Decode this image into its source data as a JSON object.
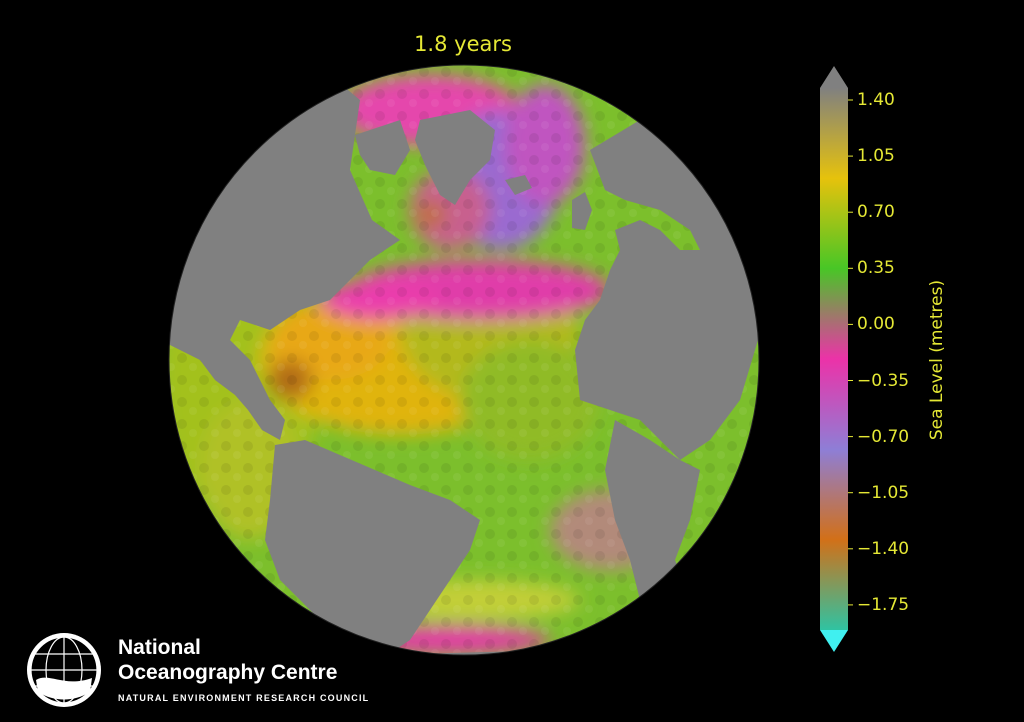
{
  "title": "1.8 years",
  "colorbar": {
    "label": "Sea Level (metres)",
    "ticks": [
      "1.40",
      "1.05",
      "0.70",
      "0.35",
      "0.00",
      "−0.35",
      "−0.70",
      "−1.05",
      "−1.40",
      "−1.75"
    ],
    "over_color": "#808080",
    "under_color": "#40f0f0",
    "stops": [
      "#2fc3a2",
      "#d27018",
      "#8e7ed6",
      "#ec32a8",
      "#48c626",
      "#e6c20c",
      "#808080"
    ]
  },
  "map": {
    "land_color": "#808080",
    "projection": "orthographic",
    "view": "Atlantic Ocean"
  },
  "logo": {
    "line1": "National",
    "line2": "Oceanography Centre",
    "subtitle": "NATURAL ENVIRONMENT RESEARCH COUNCIL"
  }
}
